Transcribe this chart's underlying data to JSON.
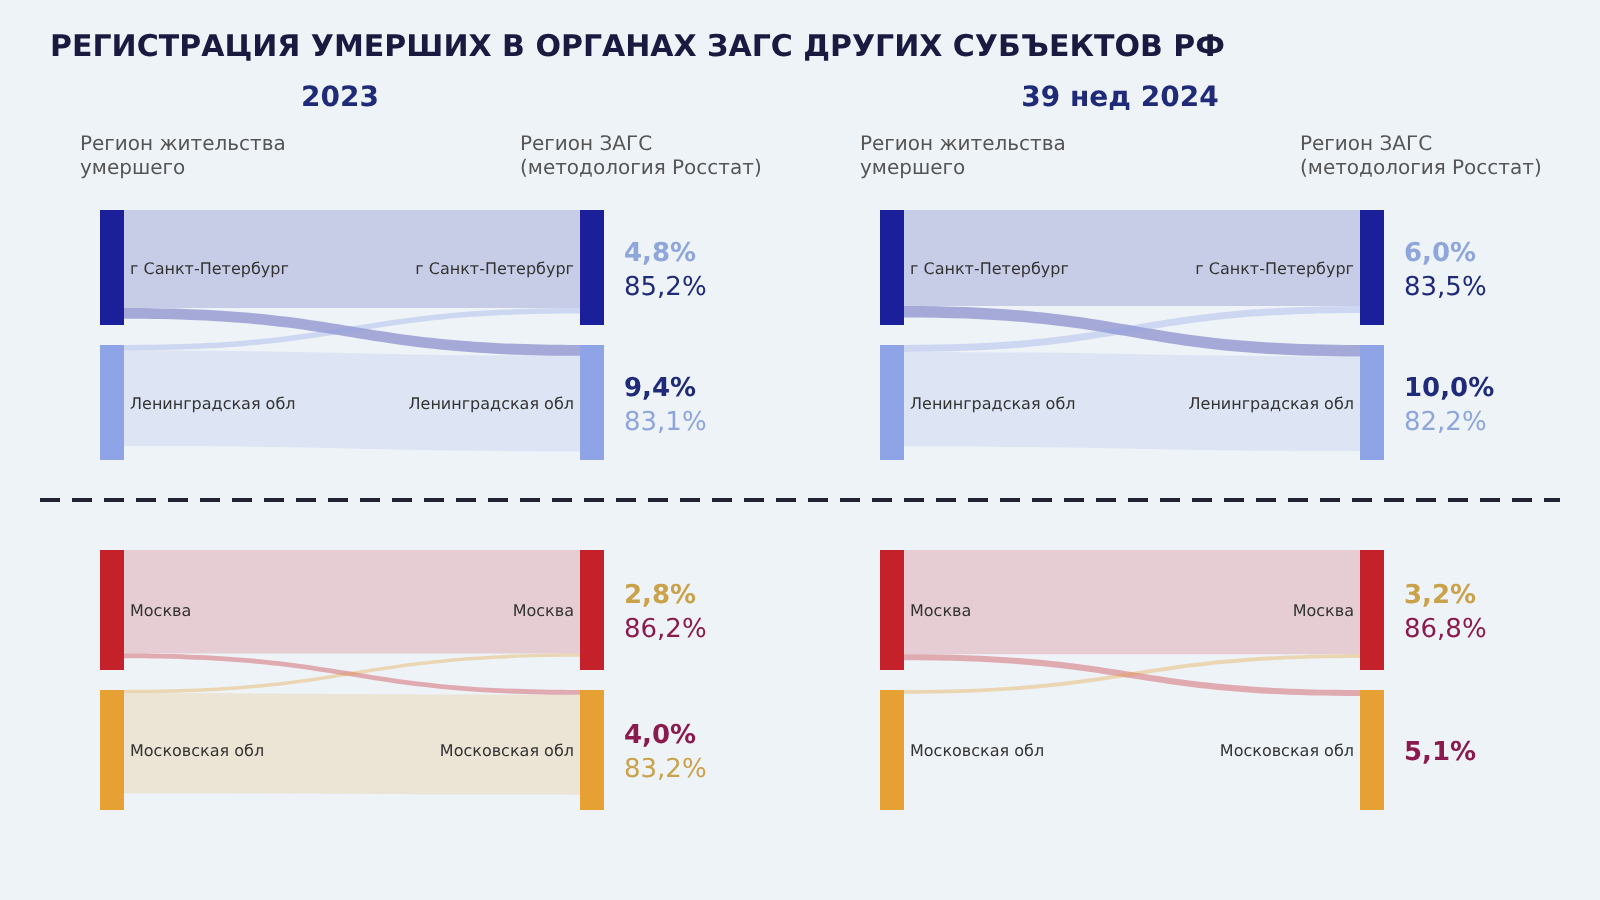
{
  "chart_data": [
    {
      "type": "other",
      "title": "РЕГИСТРАЦИЯ УМЕРШИХ В ОРГАНАХ ЗАГС ДРУГИХ СУБЪЕКТОВ РФ",
      "subtitle": "2023",
      "annotations": [
        "Регион жительства умершего",
        "Регион ЗАГС (методология Росстат)"
      ],
      "categories": [
        "г Санкт-Петербург",
        "Ленинградская обл"
      ],
      "colors": [
        "#1c1f9a",
        "#8ea4e6"
      ],
      "series": [
        {
          "color": "#1f2a78",
          "values": [
            85.2,
            9.4
          ],
          "value_labels": [
            "85,2%",
            "9,4%"
          ]
        },
        {
          "color": "#8fa6da",
          "values": [
            4.8,
            83.1
          ],
          "value_labels": [
            "4,8%",
            "83,1%"
          ]
        }
      ]
    },
    {
      "type": "other",
      "subtitle": "39 нед 2024",
      "annotations": [
        "Регион жительства умершего",
        "Регион ЗАГС (методология Росстат)"
      ],
      "categories": [
        "г Санкт-Петербург",
        "Ленинградская обл"
      ],
      "colors": [
        "#1c1f9a",
        "#8ea4e6"
      ],
      "series": [
        {
          "color": "#1f2a78",
          "values": [
            83.5,
            10.0
          ],
          "value_labels": [
            "83,5%",
            "10,0%"
          ]
        },
        {
          "color": "#8fa6da",
          "values": [
            6.0,
            82.2
          ],
          "value_labels": [
            "6,0%",
            "82,2%"
          ]
        }
      ]
    },
    {
      "type": "other",
      "categories": [
        "Москва",
        "Московская обл"
      ],
      "colors": [
        "#c4212b",
        "#e6a033"
      ],
      "series": [
        {
          "color": "#8b1a4e",
          "values": [
            86.2,
            4.0
          ],
          "value_labels": [
            "86,2%",
            "4,0%"
          ]
        },
        {
          "color": "#c9a24a",
          "values": [
            2.8,
            83.2
          ],
          "value_labels": [
            "2,8%",
            "83,2%"
          ]
        }
      ]
    },
    {
      "type": "other",
      "categories": [
        "Москва",
        "Московская обл"
      ],
      "colors": [
        "#c4212b",
        "#e6a033"
      ],
      "series": [
        {
          "color": "#8b1a4e",
          "values": [
            86.8,
            5.1
          ],
          "value_labels": [
            "86,8%",
            "5,1%"
          ]
        },
        {
          "color": "#c9a24a",
          "values": [
            3.2,
            null
          ],
          "value_labels": [
            "3,2%",
            null
          ]
        }
      ]
    }
  ]
}
